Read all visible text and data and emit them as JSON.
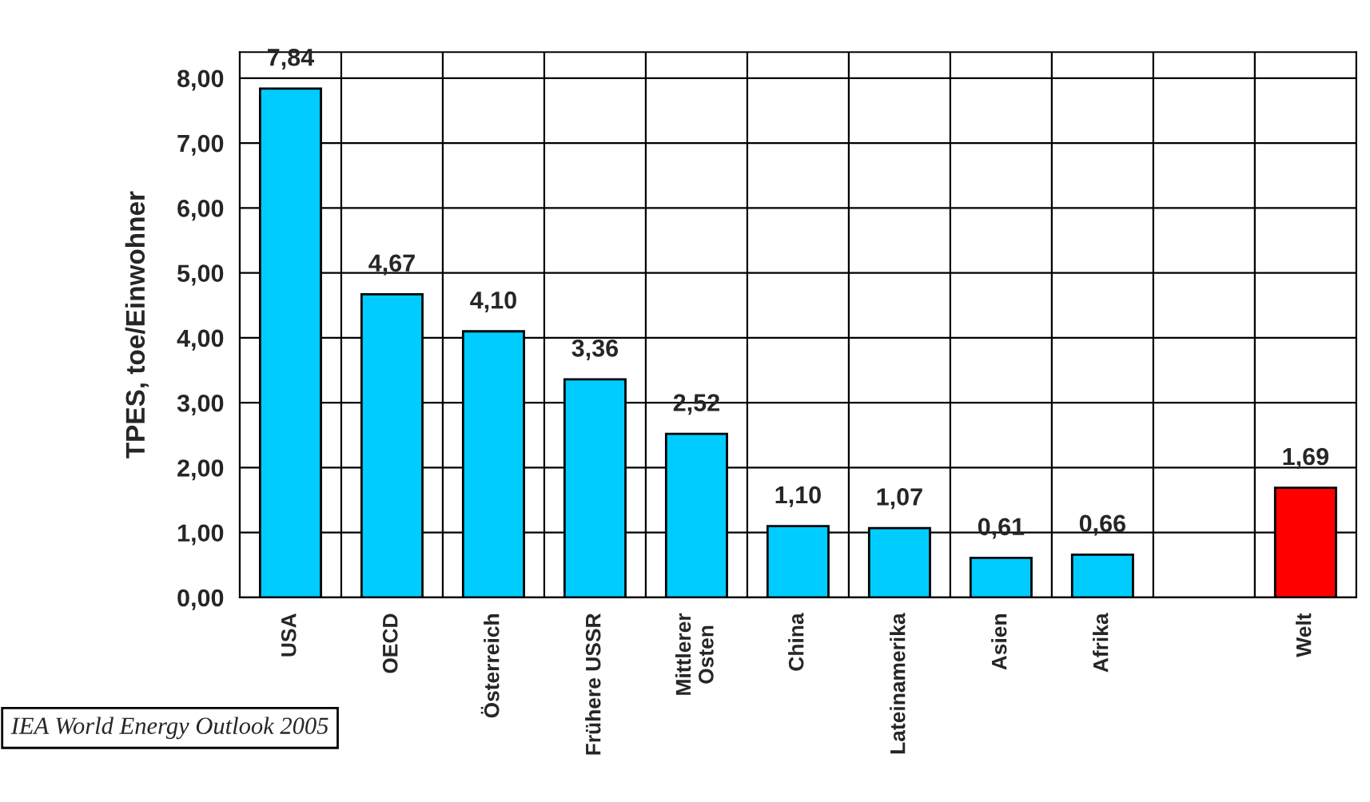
{
  "chart_data": {
    "type": "bar",
    "categories": [
      "USA",
      "OECD",
      "Österreich",
      "Frühere USSR",
      "Mittlerer\nOsten",
      "China",
      "Lateinamerika",
      "Asien",
      "Afrika",
      null,
      "Welt"
    ],
    "values": [
      7.84,
      4.67,
      4.1,
      3.36,
      2.52,
      1.1,
      1.07,
      0.61,
      0.66,
      null,
      1.69
    ],
    "value_labels": [
      "7,84",
      "4,67",
      "4,10",
      "3,36",
      "2,52",
      "1,10",
      "1,07",
      "0,61",
      "0,66",
      null,
      "1,69"
    ],
    "colors": [
      "#00ccff",
      "#00ccff",
      "#00ccff",
      "#00ccff",
      "#00ccff",
      "#00ccff",
      "#00ccff",
      "#00ccff",
      "#00ccff",
      "#00ccff",
      "#ff0000"
    ],
    "ylabel": "TPES, toe/Einwohner",
    "ylim": [
      0,
      8.4
    ],
    "yticks": [
      {
        "value": 0,
        "label": "0,00"
      },
      {
        "value": 1,
        "label": "1,00"
      },
      {
        "value": 2,
        "label": "2,00"
      },
      {
        "value": 3,
        "label": "3,00"
      },
      {
        "value": 4,
        "label": "4,00"
      },
      {
        "value": 5,
        "label": "5,00"
      },
      {
        "value": 6,
        "label": "6,00"
      },
      {
        "value": 7,
        "label": "7,00"
      },
      {
        "value": 8,
        "label": "8,00"
      }
    ],
    "grid": true,
    "annotations": [
      "IEA World Energy Outlook 2005"
    ]
  }
}
